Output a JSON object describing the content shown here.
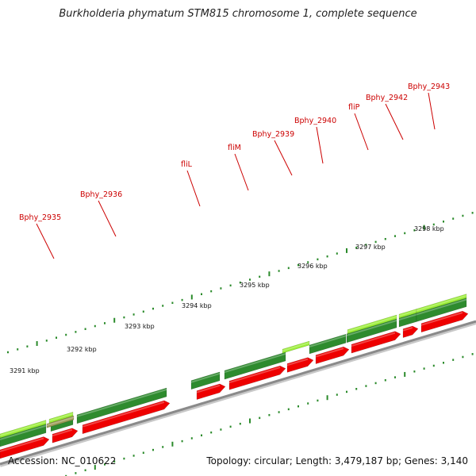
{
  "title": "Burkholderia phymatum STM815 chromosome 1, complete sequence",
  "footer": {
    "accession": "Accession: NC_010622",
    "summary": "Topology: circular; Length: 3,479,187 bp; Genes: 3,140"
  },
  "colors": {
    "backbone": "#8a8a8a",
    "cds_red": "#ee0000",
    "gene_green": "#2e8b2e",
    "light_green": "#99ee33",
    "olive": "#9a9a55",
    "label_red": "#cc0000",
    "tick_green": "#2a8a2a"
  },
  "gene_labels": [
    "Bphy_2935",
    "Bphy_2936",
    "fliL",
    "fliM",
    "Bphy_2939",
    "Bphy_2940",
    "fliP",
    "Bphy_2942",
    "Bphy_2943"
  ],
  "scale_labels": [
    "3291 kbp",
    "3292 kbp",
    "3293 kbp",
    "3294 kbp",
    "3295 kbp",
    "3296 kbp",
    "3297 kbp",
    "3298 kbp"
  ]
}
